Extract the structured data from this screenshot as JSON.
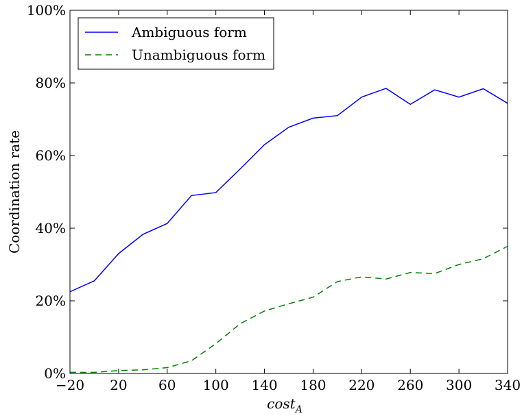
{
  "chart_data": {
    "type": "line",
    "title": "",
    "xlabel": "cost",
    "xlabel_subscript": "A",
    "ylabel": "Coordination rate",
    "x": [
      -20,
      0,
      20,
      40,
      60,
      80,
      100,
      120,
      140,
      160,
      180,
      200,
      220,
      240,
      260,
      280,
      300,
      320,
      340
    ],
    "xlim": [
      -20,
      340
    ],
    "ylim": [
      0,
      100
    ],
    "x_ticks": [
      -20,
      20,
      60,
      100,
      140,
      180,
      220,
      260,
      300,
      340
    ],
    "x_tick_labels": [
      "−20",
      "20",
      "60",
      "100",
      "140",
      "180",
      "220",
      "260",
      "300",
      "340"
    ],
    "y_ticks": [
      0,
      20,
      40,
      60,
      80,
      100
    ],
    "y_tick_labels": [
      "0%",
      "20%",
      "40%",
      "60%",
      "80%",
      "100%"
    ],
    "grid": false,
    "legend_position": "top-left",
    "series": [
      {
        "name": "Ambiguous form",
        "color": "#0000ff",
        "dash": "solid",
        "values": [
          22.5,
          25.5,
          33,
          38.3,
          41.3,
          49,
          49.8,
          56.3,
          63,
          67.8,
          70.3,
          71,
          76.1,
          78.5,
          74.1,
          78.1,
          76.1,
          78.4,
          74.4
        ]
      },
      {
        "name": "Unambiguous form",
        "color": "#008000",
        "dash": "dashed",
        "values": [
          0.3,
          0.3,
          0.8,
          1,
          1.6,
          3.5,
          8.2,
          13.7,
          17.2,
          19.2,
          21,
          25.3,
          26.6,
          26,
          27.8,
          27.5,
          30,
          31.6,
          35
        ]
      }
    ]
  }
}
